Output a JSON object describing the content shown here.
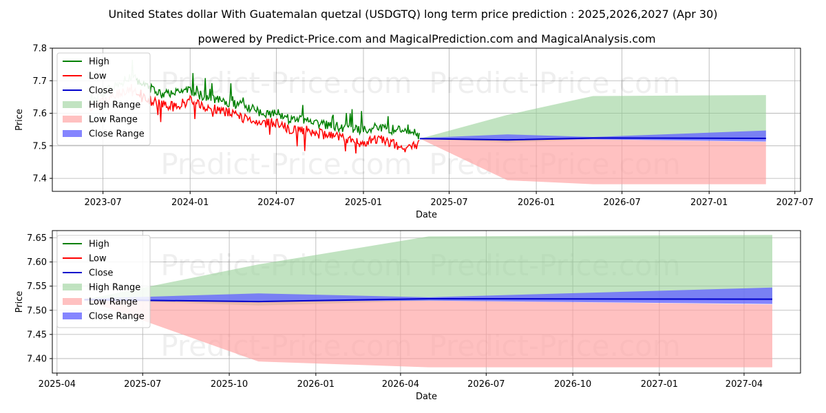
{
  "header": {
    "title": "United States dollar With Guatemalan quetzal (USDGTQ) long term price prediction : 2025,2026,2027 (Apr 30)",
    "subtitle": "powered by Predict-Price.com and MagicalPrediction.com and MagicalAnalysis.com"
  },
  "watermark": "Predict-Price.com",
  "colors": {
    "high": "#008000",
    "low": "#ff0000",
    "close": "#0000cc",
    "high_range": "#98d098",
    "low_range": "#ffa0a0",
    "close_range": "#6666ff"
  },
  "chart_data": [
    {
      "type": "line",
      "xlabel": "Date",
      "ylabel": "Price",
      "ylim": [
        7.36,
        7.8
      ],
      "xlim": [
        "2023-03-16",
        "2027-07-13"
      ],
      "yticks": [
        7.4,
        7.5,
        7.6,
        7.7,
        7.8
      ],
      "ytick_labels": [
        "7.4",
        "7.5",
        "7.6",
        "7.7",
        "7.8"
      ],
      "xticks": [
        "2023-07-01",
        "2024-01-01",
        "2024-07-01",
        "2025-01-01",
        "2025-07-01",
        "2026-01-01",
        "2026-07-01",
        "2027-01-01",
        "2027-07-01"
      ],
      "xtick_labels": [
        "2023-07",
        "2024-01",
        "2024-07",
        "2025-01",
        "2025-07",
        "2026-01",
        "2026-07",
        "2027-01",
        "2027-07"
      ],
      "grid": true,
      "legend": {
        "position": "upper left",
        "entries": [
          "High",
          "Low",
          "Close",
          "High Range",
          "Low Range",
          "Close Range"
        ]
      },
      "history": {
        "dates": [
          "2023-06-01",
          "2023-07-01",
          "2023-08-01",
          "2023-09-01",
          "2023-10-01",
          "2023-11-01",
          "2023-12-01",
          "2024-01-01",
          "2024-02-01",
          "2024-03-01",
          "2024-04-01",
          "2024-05-01",
          "2024-06-01",
          "2024-07-01",
          "2024-08-01",
          "2024-09-01",
          "2024-10-01",
          "2024-11-01",
          "2024-12-01",
          "2025-01-01",
          "2025-02-01",
          "2025-03-01",
          "2025-04-01",
          "2025-04-30"
        ],
        "high": [
          7.63,
          7.66,
          7.69,
          7.71,
          7.68,
          7.66,
          7.66,
          7.67,
          7.65,
          7.64,
          7.63,
          7.62,
          7.6,
          7.6,
          7.58,
          7.58,
          7.57,
          7.56,
          7.55,
          7.55,
          7.56,
          7.55,
          7.55,
          7.53
        ],
        "low": [
          7.61,
          7.64,
          7.66,
          7.68,
          7.65,
          7.63,
          7.62,
          7.64,
          7.62,
          7.61,
          7.6,
          7.58,
          7.57,
          7.57,
          7.55,
          7.55,
          7.54,
          7.53,
          7.52,
          7.51,
          7.52,
          7.51,
          7.49,
          7.51
        ]
      },
      "forecast": {
        "dates": [
          "2025-04-30",
          "2025-11-01",
          "2026-05-01",
          "2027-05-01"
        ],
        "close": [
          7.522,
          7.518,
          7.524,
          7.523
        ],
        "high_range": [
          [
            7.522,
            7.522
          ],
          [
            7.51,
            7.595
          ],
          [
            7.52,
            7.653
          ],
          [
            7.52,
            7.656
          ]
        ],
        "low_range": [
          [
            7.522,
            7.522
          ],
          [
            7.394,
            7.52
          ],
          [
            7.382,
            7.52
          ],
          [
            7.382,
            7.512
          ]
        ],
        "close_range": [
          [
            7.52,
            7.524
          ],
          [
            7.518,
            7.535
          ],
          [
            7.52,
            7.527
          ],
          [
            7.513,
            7.547
          ]
        ]
      }
    },
    {
      "type": "line",
      "xlabel": "Date",
      "ylabel": "Price",
      "ylim": [
        7.37,
        7.665
      ],
      "xlim": [
        "2025-03-27",
        "2027-05-31"
      ],
      "yticks": [
        7.4,
        7.45,
        7.5,
        7.55,
        7.6,
        7.65
      ],
      "ytick_labels": [
        "7.40",
        "7.45",
        "7.50",
        "7.55",
        "7.60",
        "7.65"
      ],
      "xticks": [
        "2025-04-01",
        "2025-07-01",
        "2025-10-01",
        "2026-01-01",
        "2026-04-01",
        "2026-07-01",
        "2026-10-01",
        "2027-01-01",
        "2027-04-01"
      ],
      "xtick_labels": [
        "2025-04",
        "2025-07",
        "2025-10",
        "2026-01",
        "2026-04",
        "2026-07",
        "2026-10",
        "2027-01",
        "2027-04"
      ],
      "grid": true,
      "legend": {
        "position": "upper left",
        "entries": [
          "High",
          "Low",
          "Close",
          "High Range",
          "Low Range",
          "Close Range"
        ]
      },
      "forecast": {
        "dates": [
          "2025-04-30",
          "2025-11-01",
          "2026-05-01",
          "2027-05-01"
        ],
        "close": [
          7.522,
          7.518,
          7.524,
          7.523
        ],
        "high_range": [
          [
            7.522,
            7.522
          ],
          [
            7.51,
            7.595
          ],
          [
            7.52,
            7.653
          ],
          [
            7.52,
            7.656
          ]
        ],
        "low_range": [
          [
            7.522,
            7.522
          ],
          [
            7.394,
            7.52
          ],
          [
            7.382,
            7.52
          ],
          [
            7.382,
            7.512
          ]
        ],
        "close_range": [
          [
            7.52,
            7.524
          ],
          [
            7.518,
            7.535
          ],
          [
            7.52,
            7.527
          ],
          [
            7.513,
            7.547
          ]
        ]
      }
    }
  ]
}
